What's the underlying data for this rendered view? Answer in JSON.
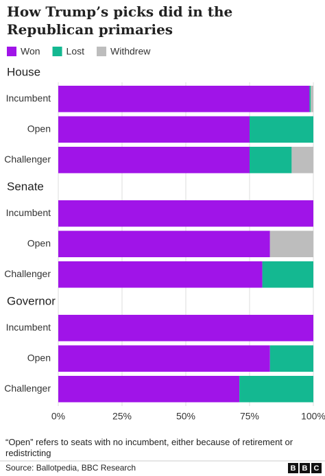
{
  "title": "How Trump’s picks did in the Republican primaries",
  "note": "“Open” refers to seats with no incumbent, either because of retirement or redistricting",
  "source": "Source: Ballotpedia, BBC Research",
  "logo": [
    "B",
    "B",
    "C"
  ],
  "chart_data": [
    {
      "type": "stacked-bar",
      "title": "House",
      "categories": [
        "Incumbent",
        "Open",
        "Challenger"
      ],
      "series": [
        {
          "name": "Won",
          "color": "#a014e8",
          "values": [
            98.5,
            75,
            75
          ]
        },
        {
          "name": "Lost",
          "color": "#14b891",
          "values": [
            0.5,
            25,
            16.5
          ]
        },
        {
          "name": "Withdrew",
          "color": "#bdbdbd",
          "values": [
            1,
            0,
            8.5
          ]
        }
      ]
    },
    {
      "type": "stacked-bar",
      "title": "Senate",
      "categories": [
        "Incumbent",
        "Open",
        "Challenger"
      ],
      "series": [
        {
          "name": "Won",
          "color": "#a014e8",
          "values": [
            100,
            83,
            80
          ]
        },
        {
          "name": "Lost",
          "color": "#14b891",
          "values": [
            0,
            0,
            20
          ]
        },
        {
          "name": "Withdrew",
          "color": "#bdbdbd",
          "values": [
            0,
            17,
            0
          ]
        }
      ]
    },
    {
      "type": "stacked-bar",
      "title": "Governor",
      "categories": [
        "Incumbent",
        "Open",
        "Challenger"
      ],
      "series": [
        {
          "name": "Won",
          "color": "#a014e8",
          "values": [
            100,
            83,
            71
          ]
        },
        {
          "name": "Lost",
          "color": "#14b891",
          "values": [
            0,
            17,
            29
          ]
        },
        {
          "name": "Withdrew",
          "color": "#bdbdbd",
          "values": [
            0,
            0,
            0
          ]
        }
      ],
      "xlim": [
        0,
        100
      ],
      "xticks": [
        {
          "value": 0,
          "label": "0%"
        },
        {
          "value": 25,
          "label": "25%"
        },
        {
          "value": 50,
          "label": "50%"
        },
        {
          "value": 75,
          "label": "75%"
        },
        {
          "value": 100,
          "label": "100%"
        }
      ]
    }
  ]
}
